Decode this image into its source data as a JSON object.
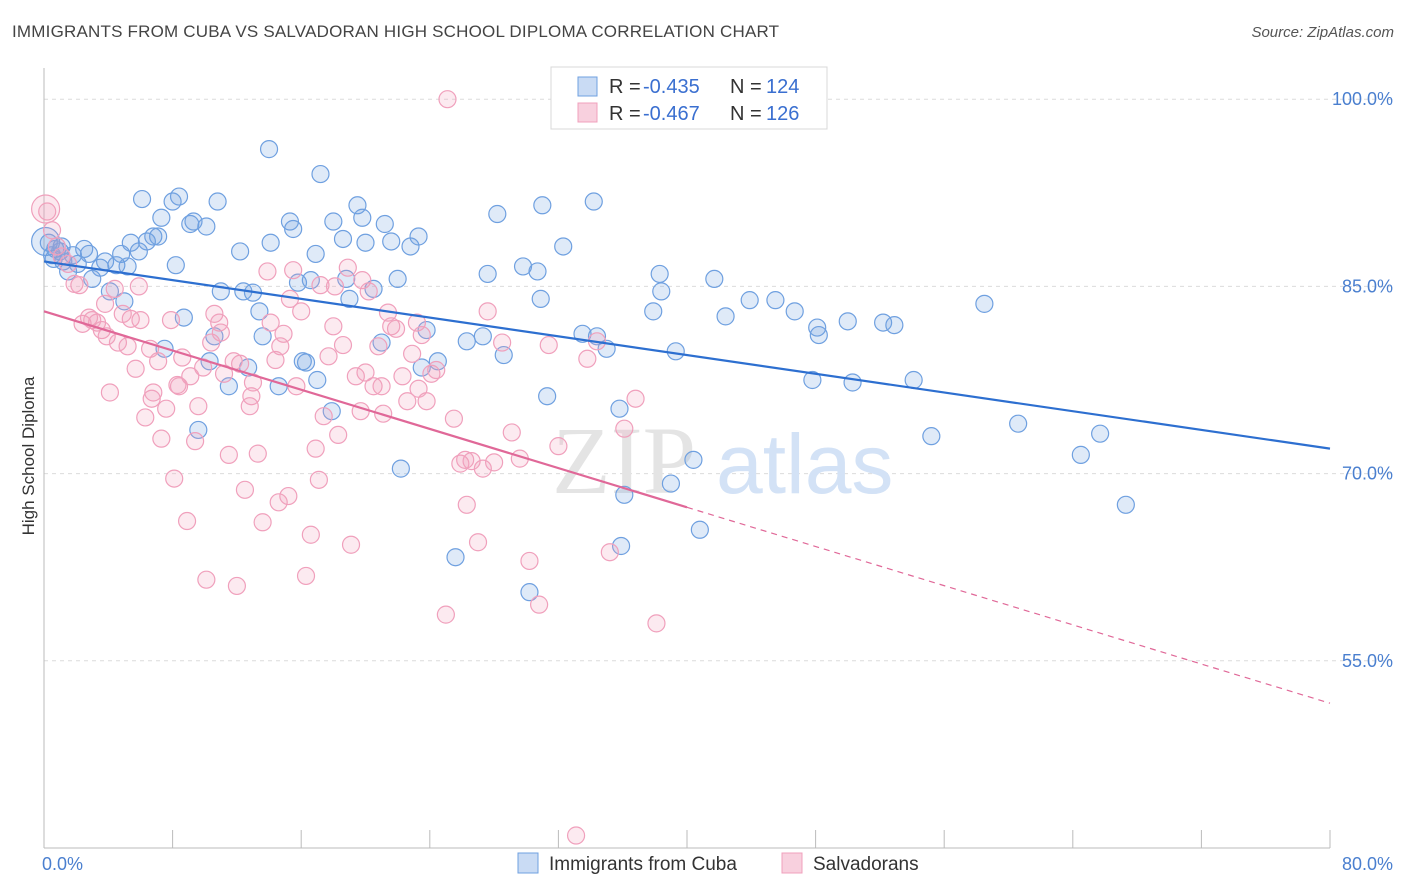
{
  "title": "IMMIGRANTS FROM CUBA VS SALVADORAN HIGH SCHOOL DIPLOMA CORRELATION CHART",
  "source": "Source: ZipAtlas.com",
  "watermark": {
    "zip": "ZIP",
    "atlas": "atlas"
  },
  "chart_data": {
    "type": "scatter",
    "ylabel": "High School Diploma",
    "xlim": [
      0,
      80
    ],
    "ylim": [
      40,
      102.5
    ],
    "x_ticks": [
      {
        "value": 0,
        "label": "0.0%"
      },
      {
        "value": 80,
        "label": "80.0%"
      }
    ],
    "y_ticks": [
      {
        "value": 100,
        "label": "100.0%"
      },
      {
        "value": 85,
        "label": "85.0%"
      },
      {
        "value": 70,
        "label": "70.0%"
      },
      {
        "value": 55,
        "label": "55.0%"
      }
    ],
    "grid": true,
    "legend_stats": [
      {
        "r_label": "R = ",
        "r_value": "-0.435",
        "n_label": "N = ",
        "n_value": "124"
      },
      {
        "r_label": "R = ",
        "r_value": "-0.467",
        "n_label": "N = ",
        "n_value": "126"
      }
    ],
    "series": [
      {
        "name": "Immigrants from Cuba",
        "color": "#6fa0e0",
        "line_color": "#2d6fd0",
        "trend": {
          "x0": 0,
          "y0": 87.0,
          "x1": 80,
          "y1": 72.0
        },
        "points": [
          [
            0.3,
            88.5
          ],
          [
            0.5,
            87.5
          ],
          [
            0.7,
            88
          ],
          [
            1,
            87.8
          ],
          [
            1.2,
            87
          ],
          [
            1.5,
            86.2
          ],
          [
            1.8,
            87.5
          ],
          [
            2.1,
            86.8
          ],
          [
            2.5,
            88
          ],
          [
            3,
            85.6
          ],
          [
            3.5,
            86.5
          ],
          [
            3.8,
            87
          ],
          [
            4.1,
            84.6
          ],
          [
            4.5,
            86.7
          ],
          [
            4.8,
            87.6
          ],
          [
            5,
            83.8
          ],
          [
            5.4,
            88.5
          ],
          [
            5.9,
            87.8
          ],
          [
            6.1,
            92
          ],
          [
            6.4,
            88.6
          ],
          [
            6.8,
            89
          ],
          [
            7.1,
            89
          ],
          [
            7.3,
            90.5
          ],
          [
            7.5,
            80
          ],
          [
            8,
            91.8
          ],
          [
            8.2,
            86.7
          ],
          [
            8.4,
            92.2
          ],
          [
            8.7,
            82.5
          ],
          [
            9.3,
            90.2
          ],
          [
            9.6,
            73.5
          ],
          [
            10.1,
            89.8
          ],
          [
            10.3,
            79
          ],
          [
            10.6,
            81
          ],
          [
            10.8,
            91.8
          ],
          [
            11,
            84.6
          ],
          [
            11.5,
            77
          ],
          [
            12.2,
            87.8
          ],
          [
            12.7,
            78.5
          ],
          [
            13,
            84.5
          ],
          [
            13.4,
            83
          ],
          [
            13.6,
            81
          ],
          [
            14,
            96
          ],
          [
            14.1,
            88.5
          ],
          [
            14.6,
            77
          ],
          [
            15.3,
            90.2
          ],
          [
            15.5,
            89.6
          ],
          [
            15.8,
            85.3
          ],
          [
            16.1,
            79
          ],
          [
            16.3,
            78.9
          ],
          [
            16.6,
            85.5
          ],
          [
            17,
            77.5
          ],
          [
            17.2,
            94
          ],
          [
            17.9,
            75
          ],
          [
            18,
            90.2
          ],
          [
            18.6,
            88.8
          ],
          [
            18.8,
            85.6
          ],
          [
            19,
            84
          ],
          [
            19.5,
            91.5
          ],
          [
            19.8,
            90.5
          ],
          [
            20,
            88.5
          ],
          [
            20.5,
            84.8
          ],
          [
            21,
            80.5
          ],
          [
            21.6,
            88.6
          ],
          [
            22,
            85.6
          ],
          [
            22.2,
            70.4
          ],
          [
            22.8,
            88.2
          ],
          [
            23.3,
            89
          ],
          [
            23.5,
            78.5
          ],
          [
            23.8,
            81.5
          ],
          [
            24.5,
            79
          ],
          [
            25.6,
            63.3
          ],
          [
            26.3,
            80.6
          ],
          [
            27.3,
            81
          ],
          [
            27.6,
            86
          ],
          [
            28.2,
            90.8
          ],
          [
            28.6,
            79.5
          ],
          [
            29.8,
            86.6
          ],
          [
            30.2,
            60.5
          ],
          [
            30.7,
            86.2
          ],
          [
            30.9,
            84
          ],
          [
            31,
            91.5
          ],
          [
            31.3,
            76.2
          ],
          [
            32.3,
            88.2
          ],
          [
            33.5,
            81.2
          ],
          [
            34.2,
            91.8
          ],
          [
            34.4,
            81
          ],
          [
            35,
            80
          ],
          [
            35.8,
            75.2
          ],
          [
            35.9,
            64.2
          ],
          [
            36.1,
            68.3
          ],
          [
            37.9,
            83
          ],
          [
            38.3,
            86
          ],
          [
            38.4,
            84.6
          ],
          [
            39,
            69.2
          ],
          [
            39.3,
            79.8
          ],
          [
            40.4,
            71.1
          ],
          [
            40.8,
            65.5
          ],
          [
            41.7,
            85.6
          ],
          [
            42.4,
            82.6
          ],
          [
            43.9,
            83.9
          ],
          [
            45.5,
            83.9
          ],
          [
            46.7,
            83
          ],
          [
            47.8,
            77.5
          ],
          [
            48.1,
            81.7
          ],
          [
            48.2,
            81.1
          ],
          [
            50,
            82.2
          ],
          [
            50.3,
            77.3
          ],
          [
            52.2,
            82.1
          ],
          [
            52.9,
            81.9
          ],
          [
            54.1,
            77.5
          ],
          [
            55.2,
            73
          ],
          [
            58.5,
            83.6
          ],
          [
            60.6,
            74
          ],
          [
            64.5,
            71.5
          ],
          [
            65.7,
            73.2
          ],
          [
            67.3,
            67.5
          ],
          [
            0.6,
            87.2
          ],
          [
            1.1,
            88.2
          ],
          [
            2.8,
            87.6
          ],
          [
            5.2,
            86.6
          ],
          [
            9.1,
            90
          ],
          [
            12.4,
            84.6
          ],
          [
            16.9,
            87.6
          ],
          [
            21.2,
            90
          ]
        ]
      },
      {
        "name": "Salvadorans",
        "color": "#f0a0bc",
        "line_color": "#e06898",
        "trend": {
          "x0": 0,
          "y0": 83.0,
          "x1": 40,
          "y1": 67.3
        },
        "trend_ext": {
          "x0": 40,
          "y0": 67.3,
          "x1": 80,
          "y1": 51.6
        },
        "points": [
          [
            0.2,
            91
          ],
          [
            0.5,
            89.5
          ],
          [
            0.8,
            88.2
          ],
          [
            1.1,
            87.4
          ],
          [
            1.5,
            86.8
          ],
          [
            1.9,
            85.2
          ],
          [
            2.2,
            85.1
          ],
          [
            2.4,
            82
          ],
          [
            2.8,
            82.5
          ],
          [
            3.0,
            82.3
          ],
          [
            3.3,
            82.1
          ],
          [
            3.6,
            81.5
          ],
          [
            3.9,
            81
          ],
          [
            4.1,
            76.5
          ],
          [
            4.4,
            84.8
          ],
          [
            4.6,
            80.5
          ],
          [
            4.9,
            82.8
          ],
          [
            5.2,
            80.2
          ],
          [
            5.4,
            82.4
          ],
          [
            5.7,
            78.4
          ],
          [
            6,
            82.3
          ],
          [
            6.3,
            74.5
          ],
          [
            6.6,
            80
          ],
          [
            6.8,
            76.5
          ],
          [
            7.1,
            79
          ],
          [
            7.3,
            72.8
          ],
          [
            7.6,
            75.2
          ],
          [
            7.9,
            82.3
          ],
          [
            8.1,
            69.6
          ],
          [
            8.3,
            77.1
          ],
          [
            8.6,
            79.3
          ],
          [
            8.9,
            66.2
          ],
          [
            9.1,
            77.8
          ],
          [
            9.4,
            72.6
          ],
          [
            9.6,
            75.4
          ],
          [
            9.9,
            78.5
          ],
          [
            10.1,
            61.5
          ],
          [
            10.4,
            80.5
          ],
          [
            10.6,
            82.8
          ],
          [
            10.9,
            82.1
          ],
          [
            11.2,
            78
          ],
          [
            11.5,
            71.5
          ],
          [
            11.8,
            79
          ],
          [
            12,
            61
          ],
          [
            12.2,
            78.8
          ],
          [
            12.5,
            68.7
          ],
          [
            12.8,
            75.4
          ],
          [
            13,
            77.3
          ],
          [
            13.3,
            71.6
          ],
          [
            13.6,
            66.1
          ],
          [
            13.9,
            86.2
          ],
          [
            14.1,
            82.1
          ],
          [
            14.4,
            79.1
          ],
          [
            14.6,
            67.7
          ],
          [
            14.9,
            81.2
          ],
          [
            15.2,
            68.2
          ],
          [
            15.5,
            86.3
          ],
          [
            15.7,
            77
          ],
          [
            16,
            83
          ],
          [
            16.3,
            61.8
          ],
          [
            16.6,
            65.1
          ],
          [
            16.9,
            72
          ],
          [
            17.1,
            69.5
          ],
          [
            17.4,
            74.6
          ],
          [
            17.7,
            79.4
          ],
          [
            18.0,
            81.8
          ],
          [
            18.3,
            73.1
          ],
          [
            18.6,
            80.3
          ],
          [
            18.9,
            86.5
          ],
          [
            19.1,
            64.3
          ],
          [
            19.4,
            77.8
          ],
          [
            19.7,
            75
          ],
          [
            20,
            78.1
          ],
          [
            20.2,
            84.6
          ],
          [
            20.5,
            77
          ],
          [
            20.8,
            80.2
          ],
          [
            21.1,
            74.8
          ],
          [
            21.4,
            82.9
          ],
          [
            21.6,
            81.8
          ],
          [
            21.9,
            81.6
          ],
          [
            22.3,
            77.8
          ],
          [
            22.6,
            75.8
          ],
          [
            22.9,
            79.6
          ],
          [
            23.2,
            82.1
          ],
          [
            23.5,
            81.1
          ],
          [
            23.8,
            75.8
          ],
          [
            24.1,
            78
          ],
          [
            24.4,
            78.3
          ],
          [
            25,
            58.7
          ],
          [
            25.5,
            74.4
          ],
          [
            25.9,
            70.8
          ],
          [
            26.2,
            71.1
          ],
          [
            26.6,
            71
          ],
          [
            27,
            64.5
          ],
          [
            27.3,
            70.4
          ],
          [
            27.6,
            83
          ],
          [
            28.0,
            70.9
          ],
          [
            28.5,
            80.5
          ],
          [
            29.1,
            73.3
          ],
          [
            29.6,
            71.2
          ],
          [
            30.2,
            63
          ],
          [
            30.8,
            59.5
          ],
          [
            31.4,
            80.3
          ],
          [
            32,
            72.2
          ],
          [
            33.1,
            41
          ],
          [
            33.8,
            79.2
          ],
          [
            34.4,
            80.6
          ],
          [
            35.2,
            63.7
          ],
          [
            36.1,
            73.6
          ],
          [
            36.8,
            76
          ],
          [
            38.1,
            58
          ],
          [
            25.1,
            100
          ],
          [
            6.7,
            76
          ],
          [
            12.9,
            76.2
          ],
          [
            15.3,
            84
          ],
          [
            17.2,
            85.1
          ],
          [
            19.8,
            85.5
          ],
          [
            21.0,
            77
          ],
          [
            23.3,
            76.8
          ],
          [
            11.0,
            81.3
          ],
          [
            3.8,
            83.6
          ],
          [
            5.9,
            85
          ],
          [
            8.4,
            77
          ],
          [
            14.7,
            80.2
          ],
          [
            18.1,
            85
          ],
          [
            26.3,
            67.5
          ]
        ]
      }
    ]
  }
}
